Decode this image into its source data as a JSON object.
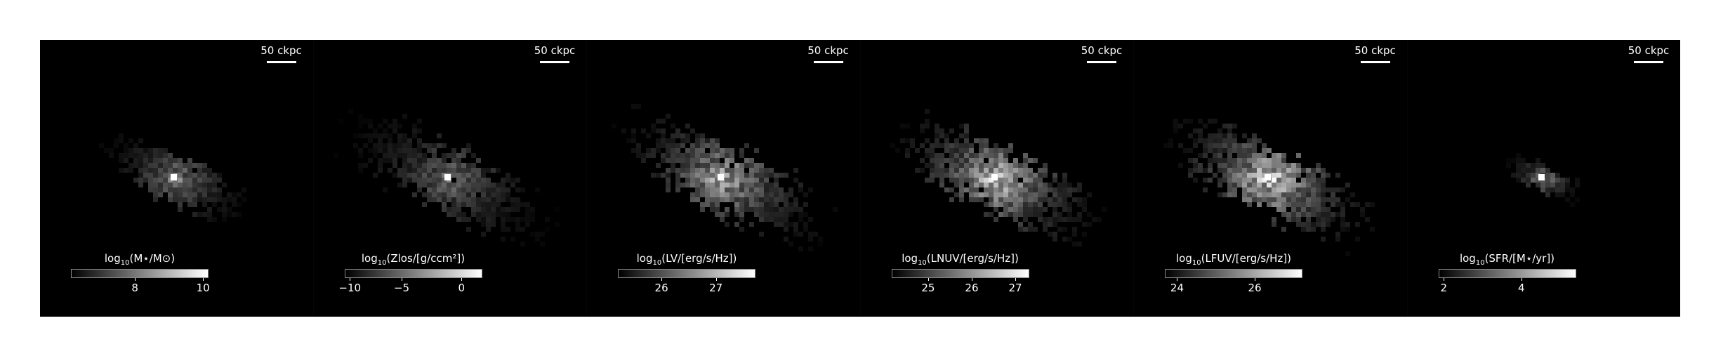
{
  "scale_label": "50 ckpc",
  "panels": [
    {
      "id": "mass",
      "label_pre": "log",
      "label_sub": "10",
      "label_post": "(M⋆/M⊙)",
      "ticks": [
        {
          "value": "8",
          "pos": 0.47
        },
        {
          "value": "10",
          "pos": 0.97
        }
      ],
      "brightness": 0.55,
      "spread": 0.7
    },
    {
      "id": "metal",
      "label_pre": "log",
      "label_sub": "10",
      "label_post": "(Zlos/[g/ccm²])",
      "ticks": [
        {
          "value": "−10",
          "pos": 0.04
        },
        {
          "value": "−5",
          "pos": 0.42
        },
        {
          "value": "0",
          "pos": 0.86
        }
      ],
      "brightness": 0.45,
      "spread": 1.0
    },
    {
      "id": "lv",
      "label_pre": "log",
      "label_sub": "10",
      "label_post": "(LV/[erg/s/Hz])",
      "ticks": [
        {
          "value": "26",
          "pos": 0.32
        },
        {
          "value": "27",
          "pos": 0.72
        }
      ],
      "brightness": 0.75,
      "spread": 1.0
    },
    {
      "id": "lnuv",
      "label_pre": "log",
      "label_sub": "10",
      "label_post": "(LNUV/[erg/s/Hz])",
      "ticks": [
        {
          "value": "25",
          "pos": 0.27
        },
        {
          "value": "26",
          "pos": 0.59
        },
        {
          "value": "27",
          "pos": 0.91
        }
      ],
      "brightness": 0.85,
      "spread": 1.0
    },
    {
      "id": "lfuv",
      "label_pre": "log",
      "label_sub": "10",
      "label_post": "(LFUV/[erg/s/Hz])",
      "ticks": [
        {
          "value": "24",
          "pos": 0.09
        },
        {
          "value": "26",
          "pos": 0.66
        }
      ],
      "brightness": 0.9,
      "spread": 1.0
    },
    {
      "id": "sfr",
      "label_pre": "log",
      "label_sub": "10",
      "label_post": "(SFR/[M⋆/yr])",
      "ticks": [
        {
          "value": "2",
          "pos": 0.04
        },
        {
          "value": "4",
          "pos": 0.61
        }
      ],
      "brightness": 0.6,
      "spread": 0.35
    }
  ]
}
